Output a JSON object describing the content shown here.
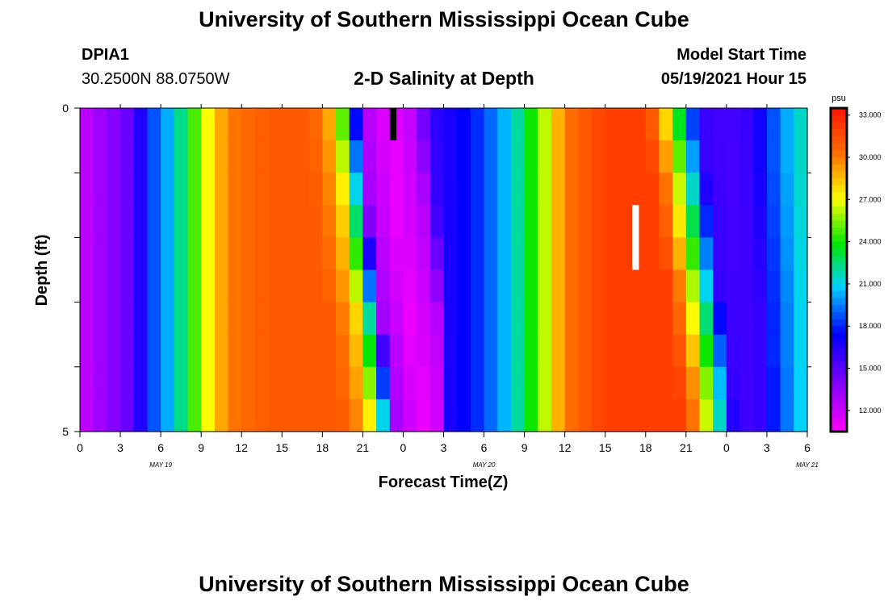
{
  "page": {
    "title_top": "University of Southern Mississippi Ocean Cube",
    "title_bottom": "University of Southern Mississippi Ocean Cube"
  },
  "header": {
    "station": "DPIA1",
    "coords": "30.2500N  88.0750W",
    "plot_title": "2-D Salinity at Depth",
    "model_label": "Model Start Time",
    "model_time": "05/19/2021 Hour 15"
  },
  "chart_data": {
    "type": "heatmap",
    "title": "2-D Salinity at Depth",
    "xlabel": "Forecast Time(Z)",
    "ylabel": "Depth (ft)",
    "x_tick_labels": [
      "0",
      "3",
      "6",
      "9",
      "12",
      "15",
      "18",
      "21",
      "0",
      "3",
      "6",
      "9",
      "12",
      "15",
      "18",
      "21",
      "0",
      "3",
      "6"
    ],
    "date_labels": [
      "MAY 19",
      "MAY 20",
      "MAY 21"
    ],
    "y_tick_labels": [
      "0",
      "5"
    ],
    "ylim": [
      5,
      0
    ],
    "colorbar": {
      "unit": "psu",
      "range": [
        10.5,
        33.5
      ],
      "tick_values": [
        12,
        15,
        18,
        21,
        24,
        27,
        30,
        33
      ],
      "tick_labels": [
        "12.000",
        "15.000",
        "18.000",
        "21.000",
        "24.000",
        "27.000",
        "30.000",
        "33.000"
      ]
    },
    "x_hours_from_start": [
      0,
      54
    ],
    "depth_levels_ft": [
      0.25,
      0.75,
      1.25,
      1.75,
      2.25,
      2.75,
      3.25,
      3.75,
      4.25,
      4.75
    ],
    "salinity_profile": [
      [
        0,
        12.0
      ],
      [
        4,
        15.0
      ],
      [
        5,
        18.0
      ],
      [
        7,
        21.0
      ],
      [
        9,
        26.0
      ],
      [
        11,
        30.0
      ],
      [
        14,
        31.0
      ],
      [
        17,
        31.0
      ],
      [
        18,
        30.0
      ],
      [
        19,
        28.0
      ],
      [
        20,
        22.0
      ],
      [
        21,
        13.0
      ],
      [
        23,
        11.0
      ],
      [
        25,
        12.5
      ],
      [
        26,
        16.0
      ],
      [
        28,
        17.0
      ],
      [
        30,
        18.5
      ],
      [
        32,
        21.0
      ],
      [
        34,
        25.0
      ],
      [
        36,
        30.0
      ],
      [
        39,
        32.0
      ],
      [
        42,
        32.0
      ],
      [
        43,
        30.0
      ],
      [
        44,
        26.0
      ],
      [
        45,
        21.0
      ],
      [
        46,
        16.0
      ],
      [
        48,
        15.5
      ],
      [
        50,
        16.0
      ],
      [
        51,
        18.0
      ],
      [
        53,
        21.0
      ],
      [
        54,
        22.0
      ]
    ],
    "front_shift_hours_by_depth": [
      [
        0.0,
        0.0,
        0.0
      ],
      [
        0.2,
        0.3,
        0.0
      ],
      [
        0.4,
        0.6,
        0.1
      ],
      [
        0.6,
        0.9,
        0.2
      ],
      [
        0.9,
        1.2,
        0.3
      ],
      [
        1.2,
        1.5,
        0.4
      ],
      [
        1.5,
        1.8,
        0.5
      ],
      [
        1.8,
        2.1,
        0.5
      ],
      [
        2.1,
        2.4,
        0.6
      ],
      [
        2.4,
        2.6,
        0.6
      ]
    ],
    "special_marks": [
      {
        "color": "#000000",
        "x_hours": 23.0,
        "depth_range_ft": [
          0,
          0.5
        ]
      },
      {
        "color": "#ffffff",
        "x_hours": 41.0,
        "depth_range_ft": [
          1.5,
          2.5
        ]
      }
    ]
  }
}
